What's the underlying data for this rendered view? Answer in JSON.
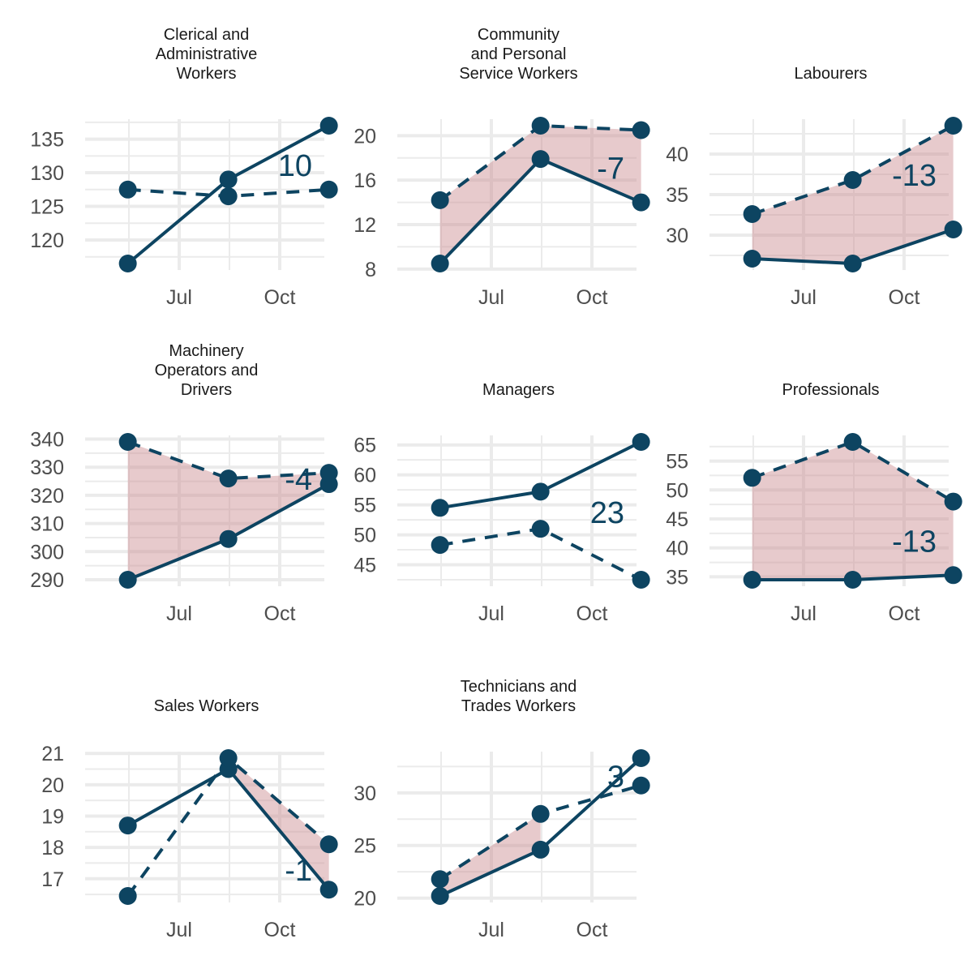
{
  "chart_data": [
    {
      "type": "line",
      "title": [
        "Clerical and",
        "Administrative",
        "Workers"
      ],
      "x": [
        "2023-05-15",
        "2023-08-15",
        "2023-11-15"
      ],
      "x_ticks": [
        "Jul",
        "Oct"
      ],
      "ylim": [
        116.5,
        137
      ],
      "y_ticks": [
        120,
        125,
        130,
        135
      ],
      "series": [
        {
          "style": "solid",
          "values": [
            116.5,
            129.0,
            137.0
          ]
        },
        {
          "style": "dashed",
          "values": [
            127.5,
            126.5,
            127.5
          ]
        }
      ],
      "ribbon": false,
      "difference_label": "10"
    },
    {
      "type": "line",
      "title": [
        "Community",
        "and Personal",
        "Service Workers"
      ],
      "x": [
        "2023-05-15",
        "2023-08-15",
        "2023-11-15"
      ],
      "x_ticks": [
        "Jul",
        "Oct"
      ],
      "ylim": [
        8.5,
        20.9
      ],
      "y_ticks": [
        8,
        12,
        16,
        20
      ],
      "series": [
        {
          "style": "solid",
          "values": [
            8.5,
            17.9,
            14.0
          ]
        },
        {
          "style": "dashed",
          "values": [
            14.2,
            20.9,
            20.5
          ]
        }
      ],
      "ribbon": true,
      "difference_label": "-7"
    },
    {
      "type": "line",
      "title": [
        "Labourers"
      ],
      "x": [
        "2023-05-15",
        "2023-08-15",
        "2023-11-15"
      ],
      "x_ticks": [
        "Jul",
        "Oct"
      ],
      "ylim": [
        26.5,
        43.5
      ],
      "y_ticks": [
        30,
        35,
        40
      ],
      "series": [
        {
          "style": "solid",
          "values": [
            27.1,
            26.5,
            30.7
          ]
        },
        {
          "style": "dashed",
          "values": [
            32.6,
            36.8,
            43.5
          ]
        }
      ],
      "ribbon": true,
      "difference_label": "-13"
    },
    {
      "type": "line",
      "title": [
        "Machinery",
        "Operators and",
        "Drivers"
      ],
      "x": [
        "2023-05-15",
        "2023-08-15",
        "2023-11-15"
      ],
      "x_ticks": [
        "Jul",
        "Oct"
      ],
      "ylim": [
        290,
        339
      ],
      "y_ticks": [
        290,
        300,
        310,
        320,
        330,
        340
      ],
      "series": [
        {
          "style": "solid",
          "values": [
            290.0,
            304.5,
            324.0
          ]
        },
        {
          "style": "dashed",
          "values": [
            339.0,
            326.0,
            328.0
          ]
        }
      ],
      "ribbon": true,
      "difference_label": "-4"
    },
    {
      "type": "line",
      "title": [
        "Managers"
      ],
      "x": [
        "2023-05-15",
        "2023-08-15",
        "2023-11-15"
      ],
      "x_ticks": [
        "Jul",
        "Oct"
      ],
      "ylim": [
        42.5,
        65.5
      ],
      "y_ticks": [
        45,
        50,
        55,
        60,
        65
      ],
      "series": [
        {
          "style": "solid",
          "values": [
            54.5,
            57.2,
            65.5
          ]
        },
        {
          "style": "dashed",
          "values": [
            48.3,
            51.0,
            42.5
          ]
        }
      ],
      "ribbon": false,
      "difference_label": "23"
    },
    {
      "type": "line",
      "title": [
        "Professionals"
      ],
      "x": [
        "2023-05-15",
        "2023-08-15",
        "2023-11-15"
      ],
      "x_ticks": [
        "Jul",
        "Oct"
      ],
      "ylim": [
        34.5,
        58.3
      ],
      "y_ticks": [
        35,
        40,
        45,
        50,
        55
      ],
      "series": [
        {
          "style": "solid",
          "values": [
            34.5,
            34.5,
            35.3
          ]
        },
        {
          "style": "dashed",
          "values": [
            52.1,
            58.3,
            48.0
          ]
        }
      ],
      "ribbon": true,
      "difference_label": "-13"
    },
    {
      "type": "line",
      "title": [
        "Sales Workers"
      ],
      "x": [
        "2023-05-15",
        "2023-08-15",
        "2023-11-15"
      ],
      "x_ticks": [
        "Jul",
        "Oct"
      ],
      "ylim": [
        16.45,
        20.85
      ],
      "y_ticks": [
        17,
        18,
        19,
        20,
        21
      ],
      "series": [
        {
          "style": "solid",
          "values": [
            18.7,
            20.5,
            16.65
          ]
        },
        {
          "style": "dashed",
          "values": [
            16.45,
            20.85,
            18.1
          ]
        }
      ],
      "ribbon": "partial",
      "difference_label": "-1"
    },
    {
      "type": "line",
      "title": [
        "Technicians and",
        "Trades Workers"
      ],
      "x": [
        "2023-05-15",
        "2023-08-15",
        "2023-11-15"
      ],
      "x_ticks": [
        "Jul",
        "Oct"
      ],
      "ylim": [
        20.2,
        33.3
      ],
      "y_ticks": [
        20,
        25,
        30
      ],
      "series": [
        {
          "style": "solid",
          "values": [
            20.2,
            24.6,
            33.3
          ]
        },
        {
          "style": "dashed",
          "values": [
            21.8,
            28.0,
            30.7
          ]
        }
      ],
      "ribbon": "partial",
      "difference_label": "3"
    }
  ],
  "colors": {
    "line": "#0d4461",
    "ribbon": "#c9898d",
    "grid": "#ebebeb",
    "tick_text": "#4d4d4d"
  }
}
